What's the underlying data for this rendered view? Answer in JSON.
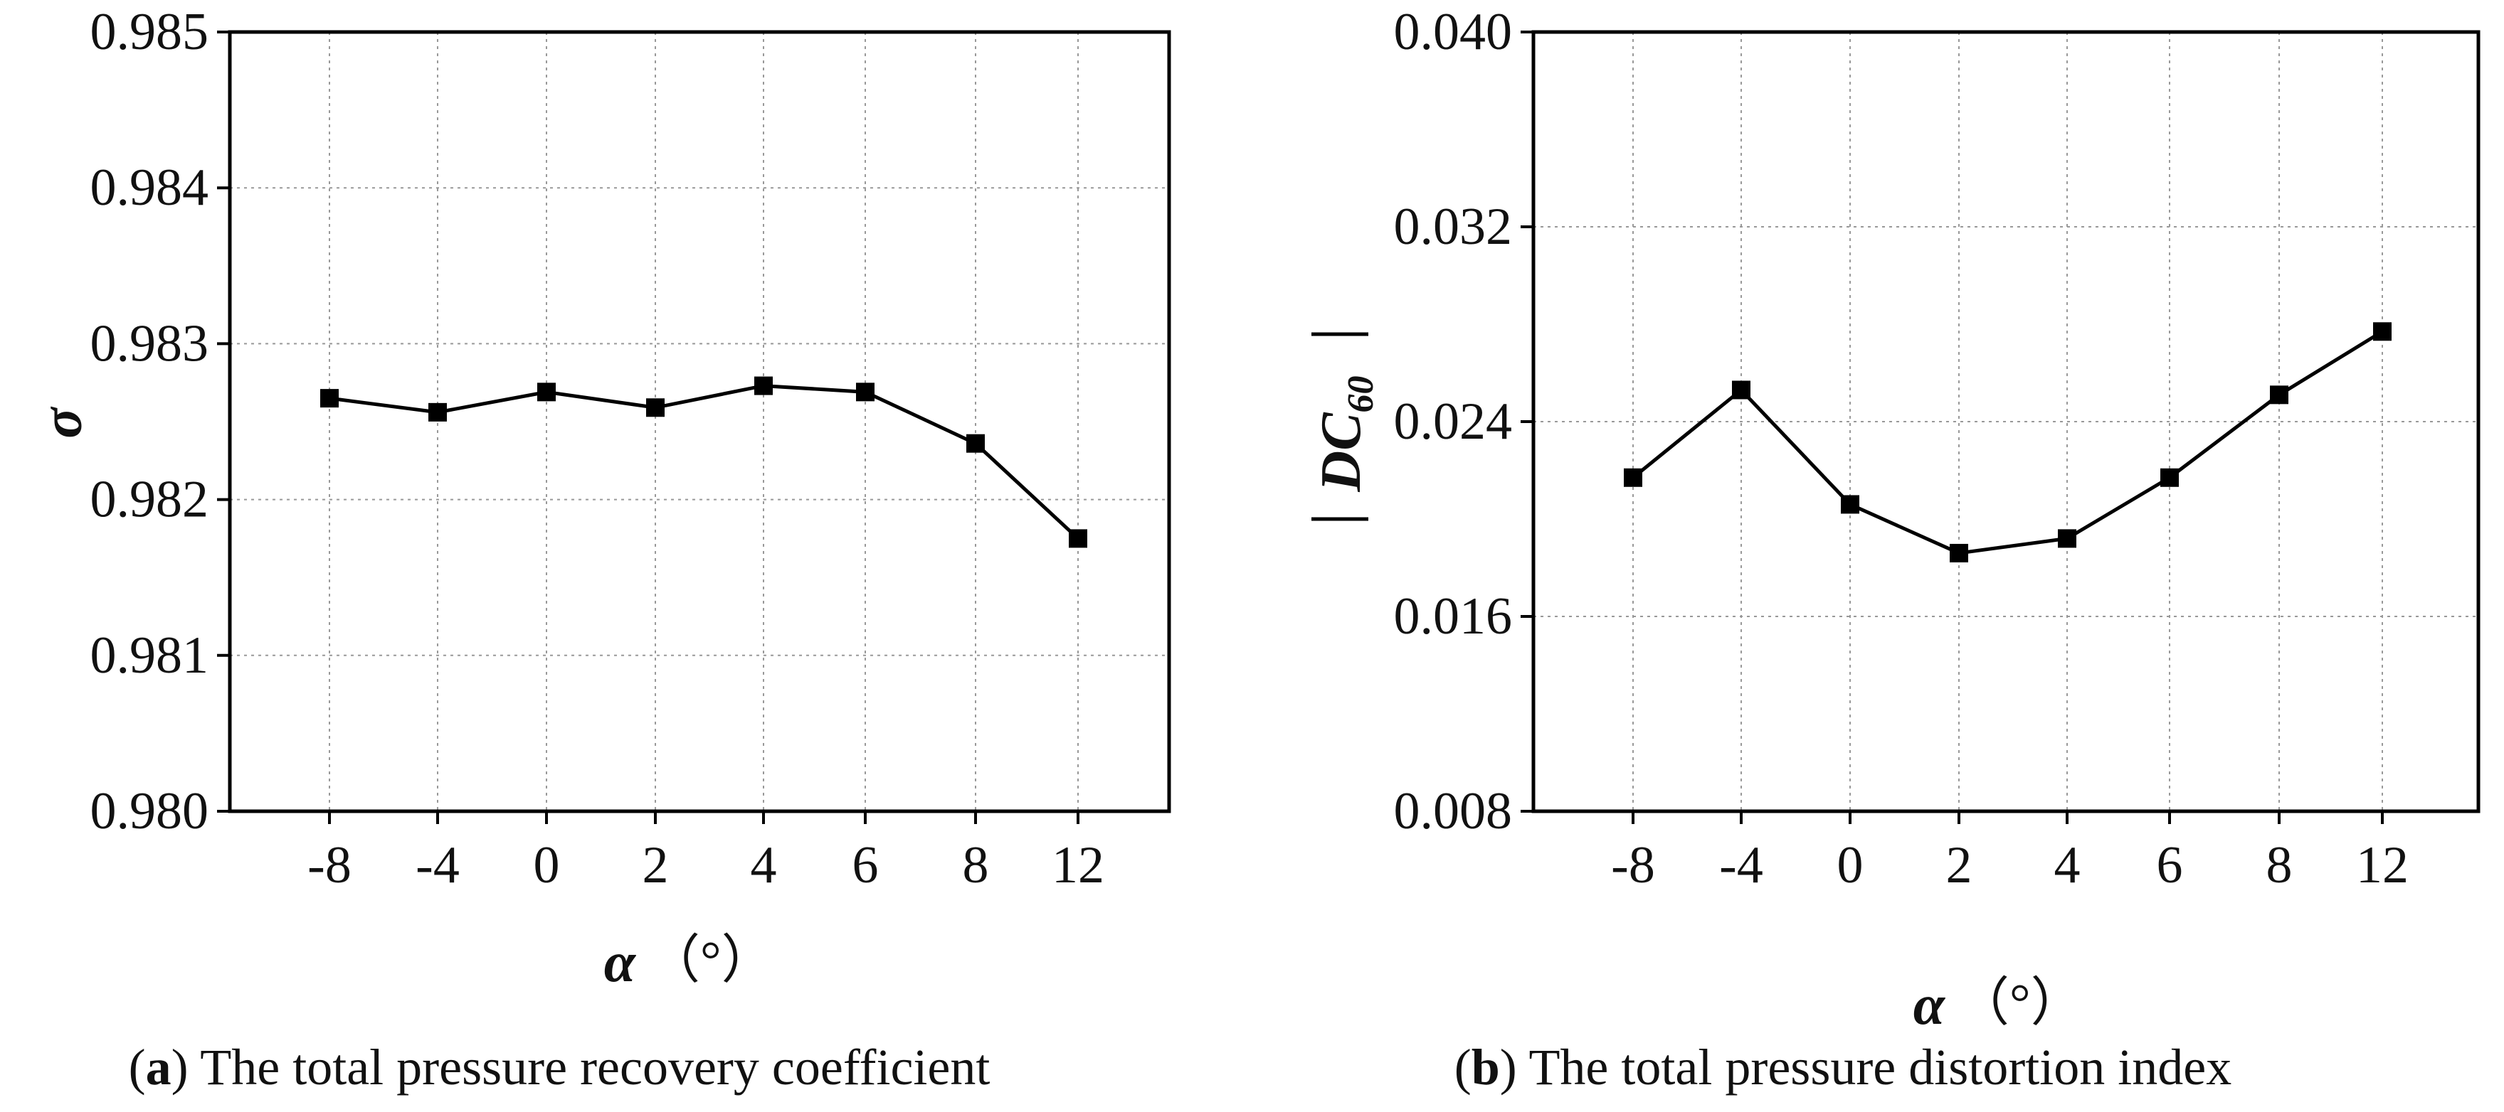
{
  "chart_data": [
    {
      "type": "line",
      "caption_letter": "a",
      "caption_text": "The total pressure recovery coefficient",
      "xlabel": "α",
      "xunit": "（°）",
      "ylabel": "σ",
      "categories": [
        "-8",
        "-4",
        "0",
        "2",
        "4",
        "6",
        "8",
        "12"
      ],
      "values": [
        0.98265,
        0.98256,
        0.98269,
        0.98259,
        0.98273,
        0.98269,
        0.98236,
        0.98175
      ],
      "ylim": [
        0.98,
        0.985
      ],
      "yticks": [
        "0.980",
        "0.981",
        "0.982",
        "0.983",
        "0.984",
        "0.985"
      ],
      "grid": true,
      "line_color": "#000000"
    },
    {
      "type": "line",
      "caption_letter": "b",
      "caption_text": "The total pressure distortion index",
      "xlabel": "α",
      "xunit": "（°）",
      "ylabel_main": "DC",
      "ylabel_sub": "60",
      "categories": [
        "-8",
        "-4",
        "0",
        "2",
        "4",
        "6",
        "8",
        "12"
      ],
      "values": [
        0.0217,
        0.0253,
        0.0206,
        0.0186,
        0.0192,
        0.0217,
        0.0251,
        0.0277
      ],
      "ylim": [
        0.008,
        0.04
      ],
      "yticks": [
        "0.008",
        "0.016",
        "0.024",
        "0.032",
        "0.040"
      ],
      "grid": true,
      "line_color": "#000000"
    }
  ]
}
